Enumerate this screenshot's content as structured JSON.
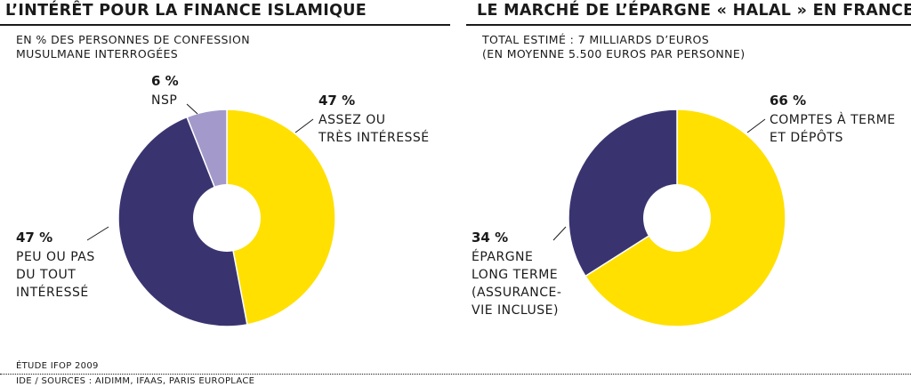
{
  "chart_data": [
    {
      "type": "pie",
      "title": "L’INTÉRÊT POUR LA FINANCE ISLAMIQUE",
      "subtitle": [
        "EN % DES PERSONNES DE CONFESSION",
        "MUSULMANE INTERROGÉES"
      ],
      "slices": [
        {
          "value": 47,
          "value_label": "47 %",
          "label": [
            "ASSEZ OU",
            "TRÈS INTÉRESSÉ"
          ],
          "color": "#FFE000"
        },
        {
          "value": 47,
          "value_label": "47 %",
          "label": [
            "PEU OU PAS",
            "DU TOUT",
            "INTÉRESSÉ"
          ],
          "color": "#393470"
        },
        {
          "value": 6,
          "value_label": "6 %",
          "label": [
            "NSP"
          ],
          "color": "#A39ACB"
        }
      ]
    },
    {
      "type": "pie",
      "title": "LE MARCHÉ DE L’ÉPARGNE « HALAL » EN FRANCE",
      "subtitle": [
        "TOTAL ESTIMÉ : 7 MILLIARDS D’EUROS",
        "(EN MOYENNE 5.500 EUROS PAR PERSONNE)"
      ],
      "slices": [
        {
          "value": 66,
          "value_label": "66 %",
          "label": [
            "COMPTES À TERME",
            "ET DÉPÔTS"
          ],
          "color": "#FFE000"
        },
        {
          "value": 34,
          "value_label": "34 %",
          "label": [
            "ÉPARGNE",
            "LONG TERME",
            "(ASSURANCE-",
            "VIE INCLUSE)"
          ],
          "color": "#393470"
        }
      ]
    }
  ],
  "footer": {
    "source": "ÉTUDE IFOP 2009",
    "credit": "IDE / SOURCES : AIDIMM, IFAAS, PARIS EUROPLACE"
  }
}
